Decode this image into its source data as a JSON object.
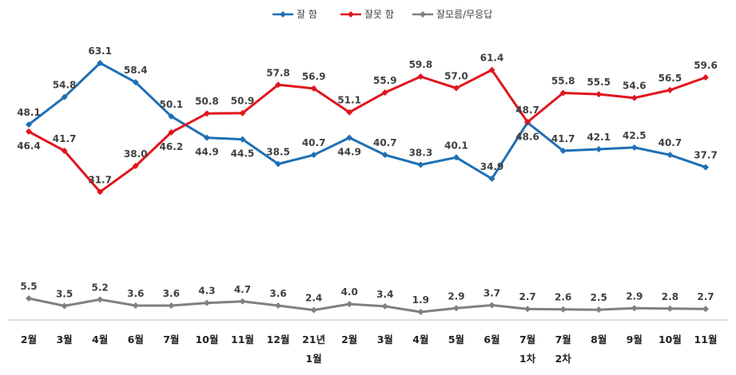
{
  "chart_data": {
    "type": "line",
    "title": "",
    "xlabel": "",
    "ylabel": "",
    "grid": false,
    "legend_position": "top-center",
    "categories": [
      [
        "2월"
      ],
      [
        "3월"
      ],
      [
        "4월"
      ],
      [
        "6월"
      ],
      [
        "7월"
      ],
      [
        "10월"
      ],
      [
        "11월"
      ],
      [
        "12월"
      ],
      [
        "21년",
        "1월"
      ],
      [
        "2월"
      ],
      [
        "3월"
      ],
      [
        "4월"
      ],
      [
        "5월"
      ],
      [
        "6월"
      ],
      [
        "7월",
        "1차"
      ],
      [
        "7월",
        "2차"
      ],
      [
        "8월"
      ],
      [
        "9월"
      ],
      [
        "10월"
      ],
      [
        "11월"
      ]
    ],
    "series": [
      {
        "name": "잘 함",
        "color": "#1f6fb4",
        "values": [
          48.1,
          54.8,
          63.1,
          58.4,
          50.1,
          44.9,
          44.5,
          38.5,
          40.7,
          44.9,
          40.7,
          38.3,
          40.1,
          34.9,
          48.6,
          41.7,
          42.1,
          42.5,
          40.7,
          37.7
        ],
        "label_pos": [
          "above",
          "above",
          "above",
          "above",
          "above",
          "below",
          "below",
          "above",
          "above",
          "below",
          "above",
          "above",
          "above",
          "above",
          "below",
          "above",
          "above",
          "above",
          "above",
          "above"
        ]
      },
      {
        "name": "잘못 함",
        "color": "#e0161d",
        "values": [
          46.4,
          41.7,
          31.7,
          38.0,
          46.2,
          50.8,
          50.9,
          57.8,
          56.9,
          51.1,
          55.9,
          59.8,
          57.0,
          61.4,
          48.7,
          55.8,
          55.5,
          54.6,
          56.5,
          59.6
        ],
        "label_pos": [
          "below",
          "above",
          "above",
          "above",
          "below",
          "above",
          "above",
          "above",
          "above",
          "above",
          "above",
          "above",
          "above",
          "above",
          "above",
          "above",
          "above",
          "above",
          "above",
          "above"
        ]
      },
      {
        "name": "잘모름/무응답",
        "color": "#808080",
        "values": [
          5.5,
          3.5,
          5.2,
          3.6,
          3.6,
          4.3,
          4.7,
          3.6,
          2.4,
          4.0,
          3.4,
          1.9,
          2.9,
          3.7,
          2.7,
          2.6,
          2.5,
          2.9,
          2.8,
          2.7
        ],
        "label_pos": [
          "above",
          "above",
          "above",
          "above",
          "above",
          "above",
          "above",
          "above",
          "above",
          "above",
          "above",
          "above",
          "above",
          "above",
          "above",
          "above",
          "above",
          "above",
          "above",
          "above"
        ]
      }
    ]
  }
}
